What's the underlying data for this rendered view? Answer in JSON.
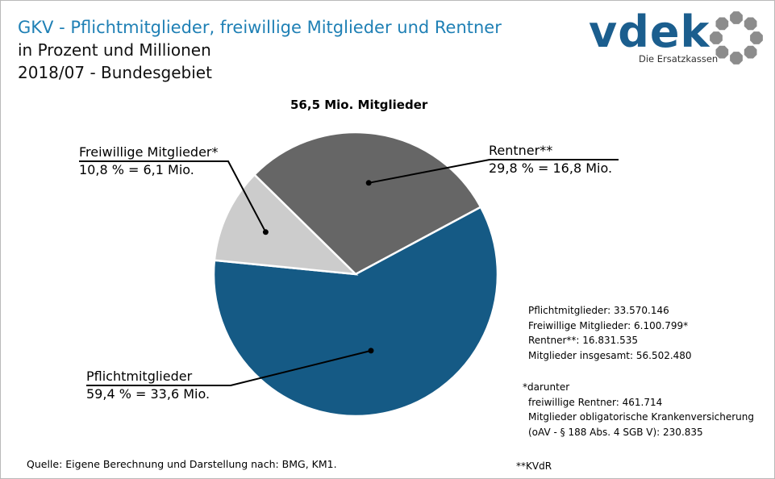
{
  "header": {
    "title": "GKV - Pflichtmitglieder, freiwillige Mitglieder und Rentner",
    "subtitle1": "in Prozent und Millionen",
    "subtitle2": "2018/07 - Bundesgebiet"
  },
  "logo": {
    "word": "vdek",
    "tagline": "Die Ersatzkassen"
  },
  "colors": {
    "title": "#1f80b5",
    "pflicht": "#155a85",
    "freiwillig": "#cccccc",
    "rentner": "#666666",
    "logo": "#1b5e8e",
    "logo_ring": "#8c8c8c"
  },
  "chart_data": {
    "type": "pie",
    "title": "56,5 Mio. Mitglieder",
    "slices": [
      {
        "name": "Rentner**",
        "label": "29,8 % = 16,8 Mio.",
        "percent": 29.8,
        "millions": 16.8,
        "color": "#666666"
      },
      {
        "name": "Pflichtmitglieder",
        "label": "59,4 % = 33,6 Mio.",
        "percent": 59.4,
        "millions": 33.6,
        "color": "#155a85"
      },
      {
        "name": "Freiwillige Mitglieder*",
        "label": "10,8 % = 6,1 Mio.",
        "percent": 10.8,
        "millions": 6.1,
        "color": "#cccccc"
      }
    ]
  },
  "stats": {
    "lines": [
      "Pflichtmitglieder: 33.570.146",
      "Freiwillige Mitglieder: 6.100.799*",
      "Rentner**: 16.831.535",
      "Mitglieder insgesamt: 56.502.480"
    ]
  },
  "notes": {
    "star": "*darunter",
    "lines": [
      "freiwillige Rentner: 461.714",
      "Mitglieder obligatorische Krankenversicherung",
      "(oAV - § 188 Abs. 4 SGB V): 230.835"
    ],
    "kvdr": "**KVdR"
  },
  "source": "Quelle: Eigene Berechnung und Darstellung nach: BMG, KM1."
}
